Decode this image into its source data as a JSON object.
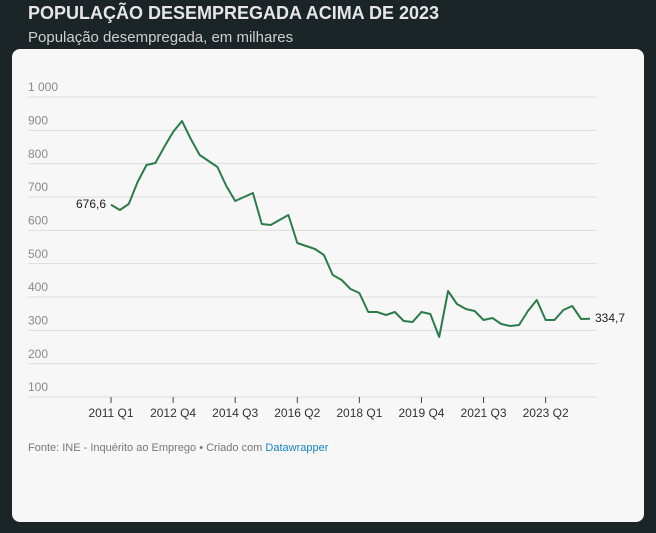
{
  "chart_data": {
    "type": "line",
    "title": "POPULAÇÃO DESEMPREGADA ACIMA DE 2023",
    "subtitle": "População desempregada, em milhares",
    "source": "Fonte: INE - Inquérito ao Emprego • Criado com ",
    "source_link": "Datawrapper",
    "categories": [
      "2011 Q1",
      null,
      null,
      null,
      null,
      null,
      null,
      "2012 Q4",
      null,
      null,
      null,
      null,
      null,
      null,
      "2014 Q3",
      null,
      null,
      null,
      null,
      null,
      null,
      "2016 Q2",
      null,
      null,
      null,
      null,
      null,
      null,
      "2018 Q1",
      null,
      null,
      null,
      null,
      null,
      null,
      "2019 Q4",
      null,
      null,
      null,
      null,
      null,
      null,
      "2021 Q3",
      null,
      null,
      null,
      null,
      null,
      null,
      "2023 Q2",
      null,
      null,
      null,
      null,
      null
    ],
    "values": [
      676.6,
      661,
      679,
      745,
      796,
      802,
      850,
      895,
      928,
      874,
      826,
      808,
      790,
      733,
      688,
      700,
      712,
      619,
      616,
      631,
      646,
      562,
      553,
      544,
      526,
      466,
      451,
      424,
      412,
      355,
      355,
      346,
      355,
      328,
      325,
      355,
      349,
      280,
      418,
      379,
      364,
      358,
      331,
      337,
      319,
      313,
      316,
      358,
      391,
      331,
      331,
      361,
      373,
      334,
      334.7
    ],
    "value_labels": [
      "676,6",
      null,
      null,
      null,
      null,
      null,
      null,
      null,
      null,
      null,
      null,
      null,
      null,
      null,
      null,
      null,
      null,
      null,
      null,
      null,
      null,
      null,
      null,
      null,
      null,
      null,
      null,
      null,
      null,
      null,
      null,
      null,
      null,
      null,
      null,
      null,
      null,
      null,
      null,
      null,
      null,
      null,
      null,
      null,
      null,
      null,
      null,
      null,
      null,
      null,
      null,
      null,
      null,
      null,
      "334,7"
    ],
    "color": "#2e7a4c",
    "ylim": [
      100,
      1000
    ],
    "yticks": [
      100,
      200,
      300,
      400,
      500,
      600,
      700,
      800,
      900,
      {
        "value": 1000,
        "label": "1 000"
      }
    ],
    "grid": true
  }
}
